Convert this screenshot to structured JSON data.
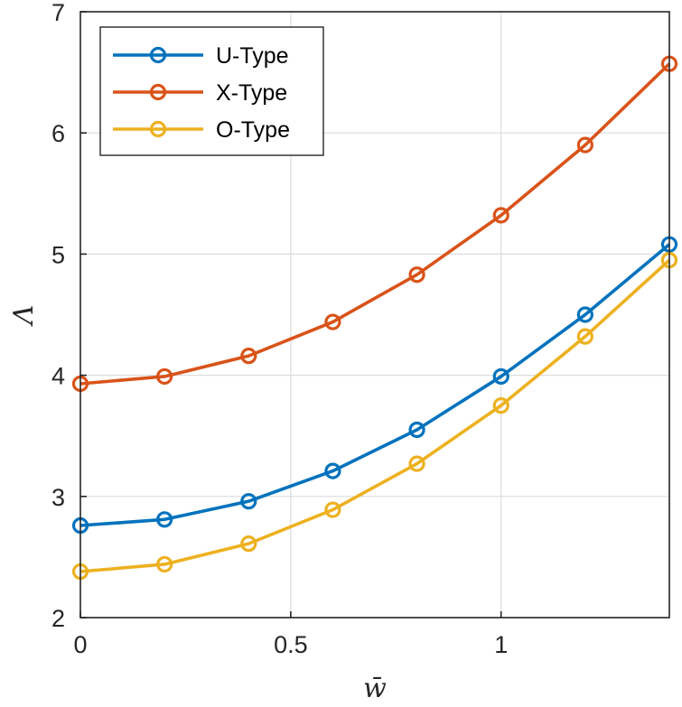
{
  "chart_data": {
    "type": "line",
    "title": "",
    "xlabel": "w̄",
    "ylabel": "Λ",
    "xlim": [
      0,
      1.4
    ],
    "ylim": [
      2,
      7
    ],
    "grid": true,
    "legend_position": "top-left",
    "x": [
      0,
      0.2,
      0.4,
      0.6,
      0.8,
      1.0,
      1.2,
      1.4
    ],
    "x_ticks": [
      0,
      0.5,
      1
    ],
    "x_tick_labels": [
      "0",
      "0.5",
      "1"
    ],
    "y_ticks": [
      2,
      3,
      4,
      5,
      6,
      7
    ],
    "y_tick_labels": [
      "2",
      "3",
      "4",
      "5",
      "6",
      "7"
    ],
    "series": [
      {
        "name": "U-Type",
        "color": "#0072BD",
        "values": [
          2.76,
          2.81,
          2.96,
          3.21,
          3.55,
          3.99,
          4.5,
          5.08
        ]
      },
      {
        "name": "X-Type",
        "color": "#D95319",
        "values": [
          3.93,
          3.99,
          4.16,
          4.44,
          4.83,
          5.32,
          5.9,
          6.57
        ]
      },
      {
        "name": "O-Type",
        "color": "#EDB120",
        "values": [
          2.38,
          2.44,
          2.61,
          2.89,
          3.27,
          3.75,
          4.32,
          4.95
        ]
      }
    ]
  }
}
